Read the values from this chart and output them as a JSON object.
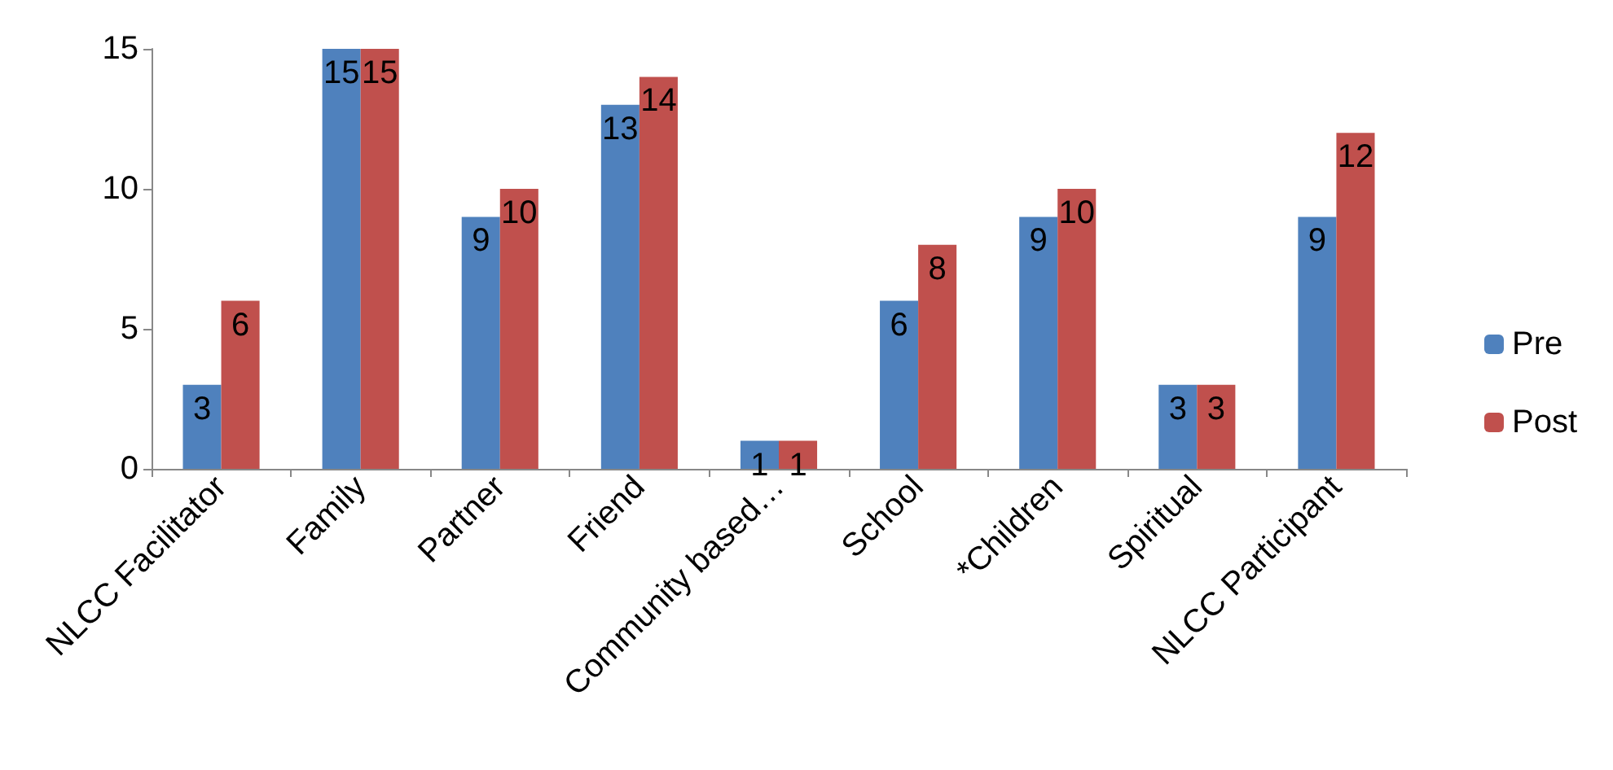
{
  "chart_data": {
    "type": "bar",
    "categories": [
      "NLCC Facilitator",
      "Family",
      "Partner",
      "Friend",
      "Community based…",
      "School",
      "*Children",
      "Spiritual",
      "NLCC Participant"
    ],
    "series": [
      {
        "name": "Pre",
        "color": "#4f81bd",
        "values": [
          3,
          15,
          9,
          13,
          1,
          6,
          9,
          3,
          9
        ]
      },
      {
        "name": "Post",
        "color": "#c0504d",
        "values": [
          6,
          15,
          10,
          14,
          1,
          8,
          10,
          3,
          12
        ]
      }
    ],
    "ylim": [
      0,
      15
    ],
    "yticks": [
      0,
      5,
      10,
      15
    ],
    "grid": false,
    "legend": "right",
    "data_labels": true
  }
}
